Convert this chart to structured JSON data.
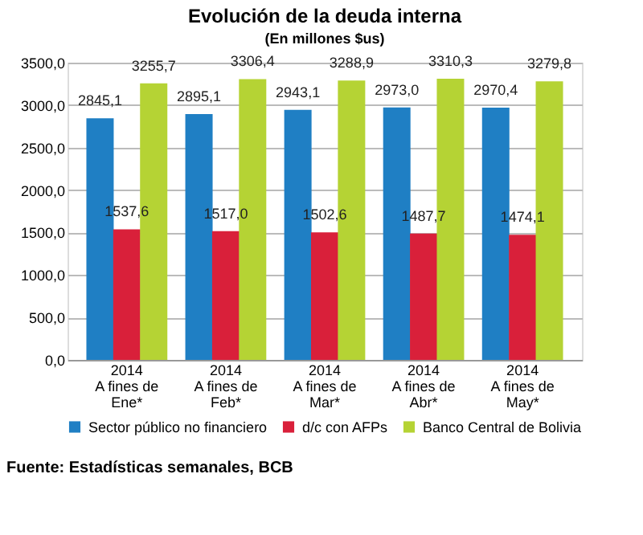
{
  "chart_data": {
    "type": "bar",
    "title": "Evolución de la deuda interna",
    "subtitle": "(En millones $us)",
    "categories": [
      "2014 A fines de Ene*",
      "2014 A fines de Feb*",
      "2014 A fines de Mar*",
      "2014 A fines de Abr*",
      "2014 A fines de May*"
    ],
    "series": [
      {
        "name": "Sector público no financiero",
        "color": "#1f7fc4",
        "values": [
          2845.1,
          2895.1,
          2943.1,
          2973.0,
          2970.4
        ],
        "value_labels": [
          "2845,1",
          "2895,1",
          "2943,1",
          "2973,0",
          "2970,4"
        ]
      },
      {
        "name": "d/c con AFPs",
        "color": "#d9203a",
        "values": [
          1537.6,
          1517.0,
          1502.6,
          1487.7,
          1474.1
        ],
        "value_labels": [
          "1537,6",
          "1517,0",
          "1502,6",
          "1487,7",
          "1474,1"
        ]
      },
      {
        "name": "Banco Central de Bolivia",
        "color": "#b5d334",
        "values": [
          3255.7,
          3306.4,
          3288.9,
          3310.3,
          3279.8
        ],
        "value_labels": [
          "3255,7",
          "3306,4",
          "3288,9",
          "3310,3",
          "3279,8"
        ]
      }
    ],
    "ylim": [
      0,
      3500
    ],
    "yticks": [
      {
        "value": 0,
        "label": "0,0"
      },
      {
        "value": 500,
        "label": "500,0"
      },
      {
        "value": 1000,
        "label": "1000,0"
      },
      {
        "value": 1500,
        "label": "1500,0"
      },
      {
        "value": 2000,
        "label": "2000,0"
      },
      {
        "value": 2500,
        "label": "2500,0"
      },
      {
        "value": 3000,
        "label": "3000,0"
      },
      {
        "value": 3500,
        "label": "3500,0"
      }
    ],
    "grid": "y",
    "legend": "bottom",
    "annotations": [
      "Fuente: Estadísticas semanales, BCB"
    ]
  }
}
